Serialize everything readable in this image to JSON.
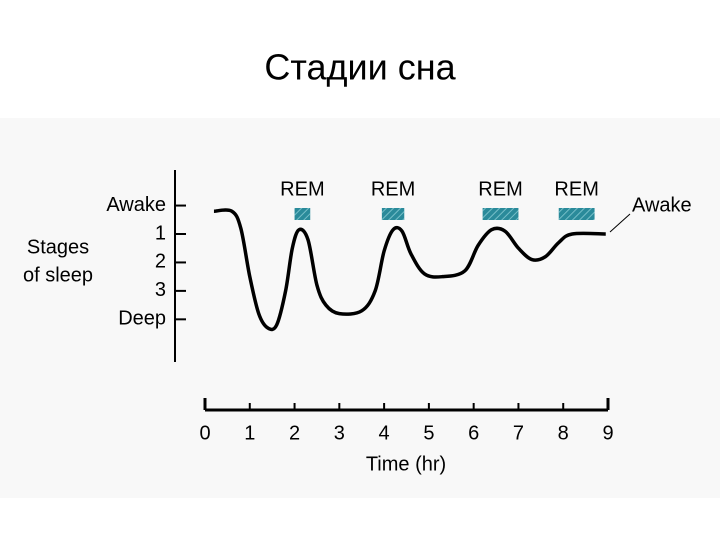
{
  "slide_title": "Стадии сна",
  "chart_data": {
    "type": "line",
    "ylabel": [
      "Stages",
      "of sleep"
    ],
    "xlabel": "Time (hr)",
    "x": [
      0.2,
      0.6,
      0.8,
      1.0,
      1.2,
      1.4,
      1.6,
      1.8,
      1.95,
      2.1,
      2.3,
      2.5,
      2.7,
      3.0,
      3.5,
      3.8,
      4.0,
      4.2,
      4.4,
      4.6,
      4.9,
      5.3,
      5.8,
      6.1,
      6.4,
      6.7,
      7.0,
      7.3,
      7.6,
      7.9,
      8.2,
      8.95
    ],
    "series": [
      {
        "color": "#000000",
        "values": [
          0.2,
          0.2,
          0.8,
          2.5,
          3.8,
          4.3,
          4.2,
          3.0,
          1.5,
          0.85,
          1.2,
          2.8,
          3.5,
          3.8,
          3.7,
          3.0,
          1.6,
          0.85,
          0.9,
          1.7,
          2.4,
          2.5,
          2.3,
          1.4,
          0.85,
          0.9,
          1.5,
          1.9,
          1.8,
          1.3,
          1.0,
          1.0
        ]
      }
    ],
    "xlim": [
      0,
      9
    ],
    "xticks": [
      0,
      1,
      2,
      3,
      4,
      5,
      6,
      7,
      8,
      9
    ],
    "ylim": [
      -1.25,
      5.5
    ],
    "y_inverted": true,
    "yticks": [
      {
        "value": 0,
        "label": "Awake"
      },
      1,
      2,
      3,
      {
        "value": 4,
        "label": "Deep"
      }
    ],
    "rem_color": "#2a8a9a",
    "rem_periods": [
      {
        "label": "REM",
        "start": 2.0,
        "end": 2.35
      },
      {
        "label": "REM",
        "start": 3.95,
        "end": 4.45
      },
      {
        "label": "REM",
        "start": 6.2,
        "end": 7.0
      },
      {
        "label": "REM",
        "start": 7.9,
        "end": 8.7
      }
    ],
    "end_annotation": "Awake"
  }
}
